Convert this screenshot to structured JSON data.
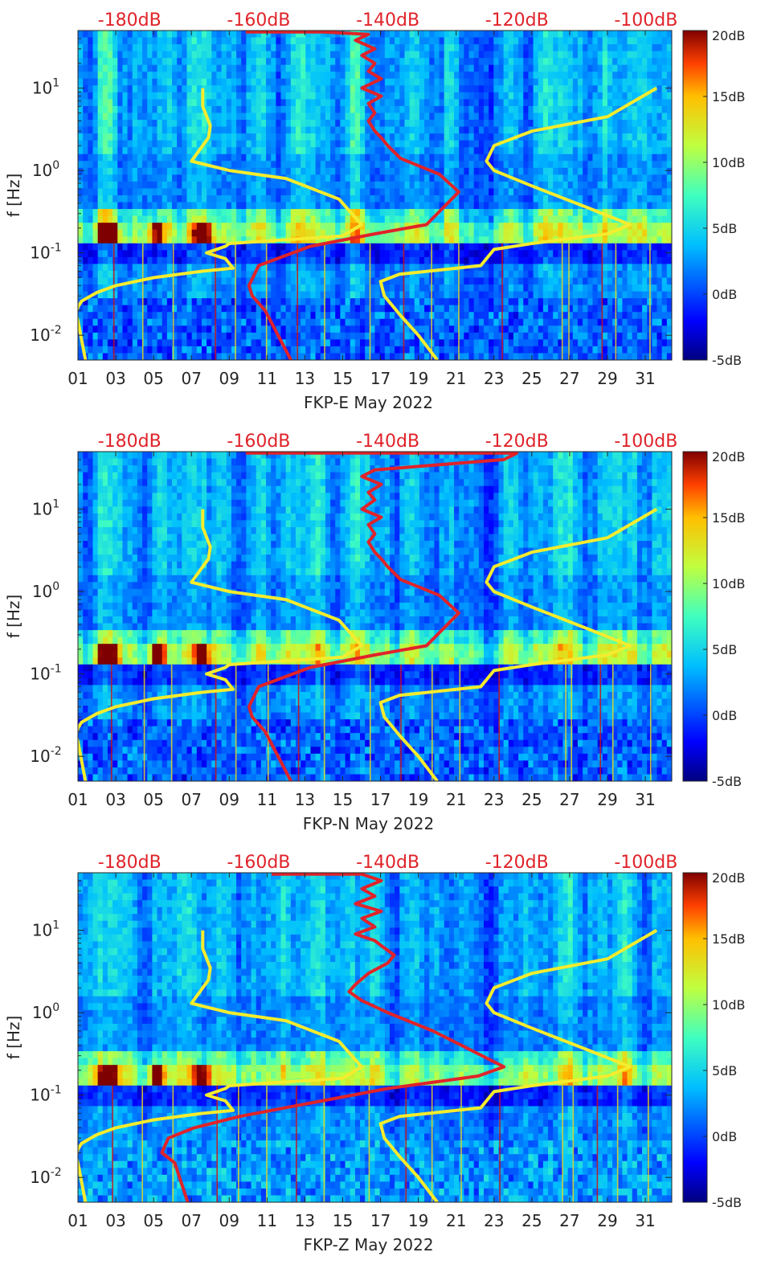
{
  "chart_data": [
    {
      "type": "heatmap",
      "title": "",
      "xlabel": "FKP-E May 2022",
      "ylabel": "f [Hz]",
      "x_ticks": [
        "01",
        "03",
        "05",
        "07",
        "09",
        "11",
        "13",
        "15",
        "17",
        "19",
        "21",
        "23",
        "25",
        "27",
        "29",
        "31"
      ],
      "x_tick_values": [
        1,
        3,
        5,
        7,
        9,
        11,
        13,
        15,
        17,
        19,
        21,
        23,
        25,
        27,
        29,
        31
      ],
      "xlim": [
        1,
        32.4
      ],
      "yscale": "log",
      "ylim": [
        0.005,
        50
      ],
      "y_ticks": [
        {
          "base": "10",
          "exp": "1",
          "value": 10
        },
        {
          "base": "10",
          "exp": "0",
          "value": 1
        },
        {
          "base": "10",
          "exp": "-1",
          "value": 0.1
        },
        {
          "base": "10",
          "exp": "-2",
          "value": 0.01
        }
      ],
      "top_axis_ticks": [
        "-180dB",
        "-160dB",
        "-140dB",
        "-120dB",
        "-100dB"
      ],
      "top_axis_values": [
        -180,
        -160,
        -140,
        -120,
        -100
      ],
      "top_axis_range": [
        -188,
        -96
      ],
      "colorbar": {
        "ticks": [
          "20dB",
          "15dB",
          "10dB",
          "5dB",
          "0dB",
          "-5dB"
        ],
        "values": [
          20,
          15,
          10,
          5,
          0,
          -5
        ],
        "range": [
          -5,
          20
        ]
      },
      "series": [
        {
          "color": "#f4ec2e",
          "x": [
            7.6,
            7.6,
            8.0,
            7.9,
            7.0,
            9.0,
            12.0,
            14.8,
            16.0,
            15.0,
            9.0,
            8.8,
            7.8,
            8.8,
            9.2,
            7.6,
            5.0,
            3.0,
            2.0,
            1.2,
            1.0,
            0.9,
            1.0,
            1.4
          ],
          "y": [
            10,
            6,
            3.5,
            2.5,
            1.3,
            1.0,
            0.8,
            0.45,
            0.22,
            0.16,
            0.13,
            0.12,
            0.1,
            0.085,
            0.065,
            0.06,
            0.05,
            0.04,
            0.033,
            0.026,
            0.022,
            0.018,
            0.015,
            0.005
          ]
        },
        {
          "color": "#f4ec2e",
          "x": [
            31.6,
            29.0,
            25.0,
            23.0,
            22.6,
            23.0,
            25.0,
            28.0,
            30.2,
            29.0,
            25.0,
            23.0,
            22.3,
            18.0,
            17.0,
            17.2,
            18.0,
            19.0,
            20.0
          ],
          "y": [
            10,
            4.5,
            3.0,
            2.0,
            1.3,
            1.0,
            0.65,
            0.35,
            0.22,
            0.17,
            0.13,
            0.11,
            0.07,
            0.055,
            0.045,
            0.03,
            0.018,
            0.01,
            0.005
          ]
        },
        {
          "color": "#e0232a",
          "x": [
            -162,
            -150,
            -143,
            -145,
            -142,
            -144,
            -142,
            -143,
            -141,
            -144,
            -141,
            -143,
            -142,
            -143,
            -142,
            -141,
            -140,
            -138,
            -132,
            -129,
            -134,
            -142,
            -152,
            -160,
            -161.5,
            -161,
            -159,
            -157,
            -155
          ],
          "y": [
            48,
            48,
            45,
            38,
            30,
            25,
            20,
            16,
            13,
            10,
            8,
            6.5,
            5,
            4,
            3,
            2.5,
            2,
            1.4,
            0.9,
            0.55,
            0.22,
            0.17,
            0.12,
            0.07,
            0.04,
            0.03,
            0.02,
            0.01,
            0.005
          ]
        }
      ]
    },
    {
      "type": "heatmap",
      "title": "",
      "xlabel": "FKP-N May 2022",
      "ylabel": "f [Hz]",
      "x_ticks": [
        "01",
        "03",
        "05",
        "07",
        "09",
        "11",
        "13",
        "15",
        "17",
        "19",
        "21",
        "23",
        "25",
        "27",
        "29",
        "31"
      ],
      "x_tick_values": [
        1,
        3,
        5,
        7,
        9,
        11,
        13,
        15,
        17,
        19,
        21,
        23,
        25,
        27,
        29,
        31
      ],
      "xlim": [
        1,
        32.4
      ],
      "yscale": "log",
      "ylim": [
        0.005,
        50
      ],
      "y_ticks": [
        {
          "base": "10",
          "exp": "1",
          "value": 10
        },
        {
          "base": "10",
          "exp": "0",
          "value": 1
        },
        {
          "base": "10",
          "exp": "-1",
          "value": 0.1
        },
        {
          "base": "10",
          "exp": "-2",
          "value": 0.01
        }
      ],
      "top_axis_ticks": [
        "-180dB",
        "-160dB",
        "-140dB",
        "-120dB",
        "-100dB"
      ],
      "top_axis_values": [
        -180,
        -160,
        -140,
        -120,
        -100
      ],
      "top_axis_range": [
        -188,
        -96
      ],
      "colorbar": {
        "ticks": [
          "20dB",
          "15dB",
          "10dB",
          "5dB",
          "0dB",
          "-5dB"
        ],
        "values": [
          20,
          15,
          10,
          5,
          0,
          -5
        ],
        "range": [
          -5,
          20
        ]
      },
      "series": [
        {
          "color": "#f4ec2e",
          "x": [
            7.6,
            7.6,
            8.0,
            7.9,
            7.0,
            9.0,
            12.0,
            14.8,
            16.0,
            15.0,
            9.0,
            8.8,
            7.8,
            8.8,
            9.2,
            7.6,
            5.0,
            3.0,
            2.0,
            1.2,
            1.0,
            0.9,
            1.0,
            1.4
          ],
          "y": [
            10,
            6,
            3.5,
            2.5,
            1.3,
            1.0,
            0.8,
            0.45,
            0.22,
            0.16,
            0.13,
            0.12,
            0.1,
            0.085,
            0.065,
            0.06,
            0.05,
            0.04,
            0.033,
            0.026,
            0.022,
            0.018,
            0.015,
            0.005
          ]
        },
        {
          "color": "#f4ec2e",
          "x": [
            31.6,
            29.0,
            25.0,
            23.0,
            22.6,
            23.0,
            25.0,
            28.0,
            30.2,
            29.0,
            25.0,
            23.0,
            22.3,
            18.0,
            17.0,
            17.2,
            18.0,
            19.0,
            20.0
          ],
          "y": [
            10,
            4.5,
            3.0,
            2.0,
            1.3,
            1.0,
            0.65,
            0.35,
            0.22,
            0.17,
            0.13,
            0.11,
            0.07,
            0.055,
            0.045,
            0.03,
            0.018,
            0.01,
            0.005
          ]
        },
        {
          "color": "#e0232a",
          "x": [
            -162,
            -145,
            -120,
            -122,
            -142,
            -144,
            -141,
            -143,
            -142,
            -144,
            -141,
            -143,
            -142,
            -143,
            -142,
            -141,
            -140,
            -138,
            -132,
            -129,
            -134,
            -142,
            -152,
            -160,
            -161.5,
            -161,
            -159,
            -157,
            -155
          ],
          "y": [
            48,
            48,
            48,
            40,
            30,
            25,
            20,
            16,
            13,
            10,
            8,
            6.5,
            5,
            4,
            3,
            2.5,
            2,
            1.4,
            0.9,
            0.55,
            0.22,
            0.17,
            0.12,
            0.07,
            0.04,
            0.03,
            0.02,
            0.01,
            0.005
          ]
        }
      ]
    },
    {
      "type": "heatmap",
      "title": "",
      "xlabel": "FKP-Z May 2022",
      "ylabel": "f [Hz]",
      "x_ticks": [
        "01",
        "03",
        "05",
        "07",
        "09",
        "11",
        "13",
        "15",
        "17",
        "19",
        "21",
        "23",
        "25",
        "27",
        "29",
        "31"
      ],
      "x_tick_values": [
        1,
        3,
        5,
        7,
        9,
        11,
        13,
        15,
        17,
        19,
        21,
        23,
        25,
        27,
        29,
        31
      ],
      "xlim": [
        1,
        32.4
      ],
      "yscale": "log",
      "ylim": [
        0.005,
        50
      ],
      "y_ticks": [
        {
          "base": "10",
          "exp": "1",
          "value": 10
        },
        {
          "base": "10",
          "exp": "0",
          "value": 1
        },
        {
          "base": "10",
          "exp": "-1",
          "value": 0.1
        },
        {
          "base": "10",
          "exp": "-2",
          "value": 0.01
        }
      ],
      "top_axis_ticks": [
        "-180dB",
        "-160dB",
        "-140dB",
        "-120dB",
        "-100dB"
      ],
      "top_axis_values": [
        -180,
        -160,
        -140,
        -120,
        -100
      ],
      "top_axis_range": [
        -188,
        -96
      ],
      "colorbar": {
        "ticks": [
          "20dB",
          "15dB",
          "10dB",
          "5dB",
          "0dB",
          "-5dB"
        ],
        "values": [
          20,
          15,
          10,
          5,
          0,
          -5
        ],
        "range": [
          -5,
          20
        ]
      },
      "series": [
        {
          "color": "#f4ec2e",
          "x": [
            7.6,
            7.6,
            8.0,
            7.9,
            7.0,
            9.0,
            12.0,
            14.8,
            16.0,
            15.0,
            9.0,
            8.8,
            7.8,
            8.8,
            9.2,
            7.6,
            5.0,
            3.0,
            2.0,
            1.2,
            1.0,
            0.9,
            1.0,
            1.4
          ],
          "y": [
            10,
            6,
            3.5,
            2.5,
            1.3,
            1.0,
            0.8,
            0.45,
            0.22,
            0.16,
            0.13,
            0.12,
            0.1,
            0.085,
            0.065,
            0.06,
            0.05,
            0.04,
            0.033,
            0.026,
            0.022,
            0.018,
            0.015,
            0.005
          ]
        },
        {
          "color": "#f4ec2e",
          "x": [
            31.6,
            29.0,
            25.0,
            23.0,
            22.6,
            23.0,
            25.0,
            28.0,
            30.2,
            29.0,
            25.0,
            23.0,
            22.3,
            18.0,
            17.0,
            17.2,
            18.0,
            19.0,
            20.0
          ],
          "y": [
            10,
            4.5,
            3.0,
            2.0,
            1.3,
            1.0,
            0.65,
            0.35,
            0.22,
            0.17,
            0.13,
            0.11,
            0.07,
            0.055,
            0.045,
            0.03,
            0.018,
            0.01,
            0.005
          ]
        },
        {
          "color": "#e0232a",
          "x": [
            -158,
            -144,
            -141,
            -144,
            -142,
            -145,
            -141,
            -144,
            -142,
            -145,
            -142,
            -141,
            -139,
            -140,
            -143,
            -145,
            -146,
            -144,
            -140,
            -133,
            -122,
            -126,
            -140,
            -152,
            -163,
            -170,
            -174,
            -175,
            -173,
            -171
          ],
          "y": [
            48,
            48,
            40,
            32,
            26,
            21,
            17,
            14,
            11,
            9,
            7.5,
            6.5,
            5,
            4,
            3,
            2.2,
            1.8,
            1.4,
            1.0,
            0.6,
            0.22,
            0.17,
            0.12,
            0.08,
            0.055,
            0.04,
            0.03,
            0.02,
            0.015,
            0.005
          ]
        }
      ]
    }
  ],
  "colors": {
    "yellow_line": "#f4ec2e",
    "red_line": "#e0232a",
    "top_axis_label": "#e0232a",
    "axis_text": "#262626"
  }
}
